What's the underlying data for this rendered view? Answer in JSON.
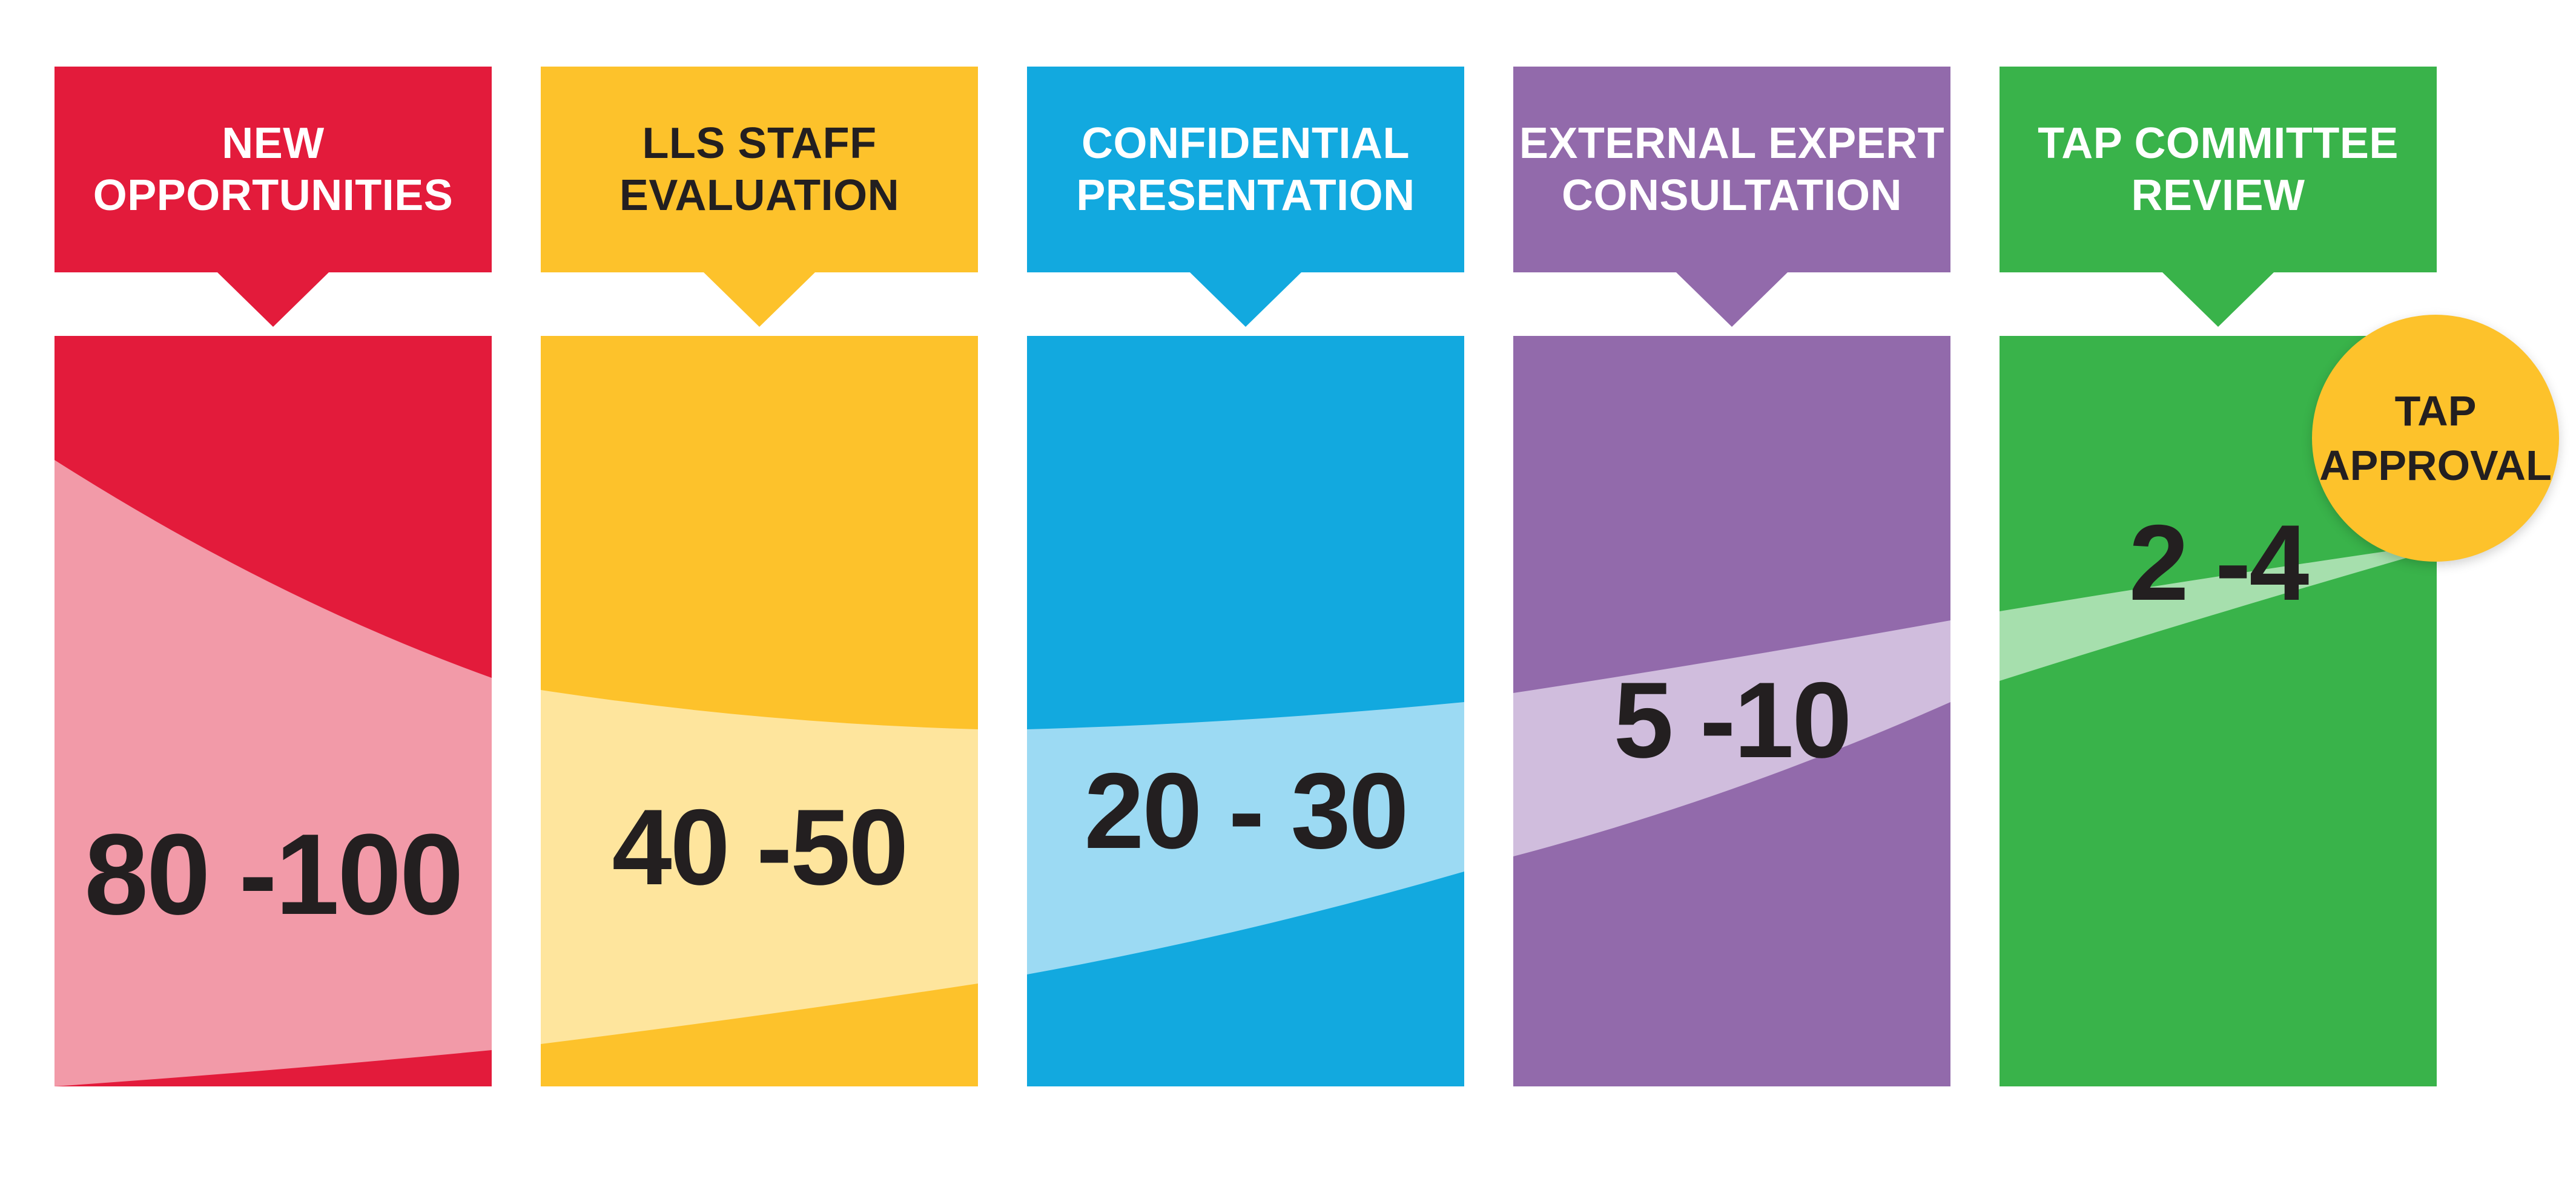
{
  "stages": [
    {
      "title_lines": [
        "NEW",
        "OPPORTUNITIES"
      ],
      "range": "80 -100",
      "colors": {
        "base": "#e31b3b",
        "band": "#f29aa8",
        "text": "#ffffff"
      }
    },
    {
      "title_lines": [
        "LLS STAFF",
        "EVALUATION"
      ],
      "range": "40 -50",
      "colors": {
        "base": "#fdc22b",
        "band": "#fee59d",
        "text": "#231f20"
      }
    },
    {
      "title_lines": [
        "CONFIDENTIAL",
        "PRESENTATION"
      ],
      "range": "20 - 30",
      "colors": {
        "base": "#12a9df",
        "band": "#9cdaf3",
        "text": "#ffffff"
      }
    },
    {
      "title_lines": [
        "EXTERNAL EXPERT",
        "CONSULTATION"
      ],
      "range": "5 -10",
      "colors": {
        "base": "#926aab",
        "band": "#d0bddd",
        "text": "#ffffff"
      }
    },
    {
      "title_lines": [
        "TAP COMMITTEE",
        "REVIEW"
      ],
      "range": "2 -4",
      "colors": {
        "base": "#39b34a",
        "band": "#a6dfad",
        "text": "#ffffff"
      }
    }
  ],
  "approval": {
    "lines": [
      "TAP",
      "APPROVAL"
    ],
    "color": "#fdc22b"
  }
}
